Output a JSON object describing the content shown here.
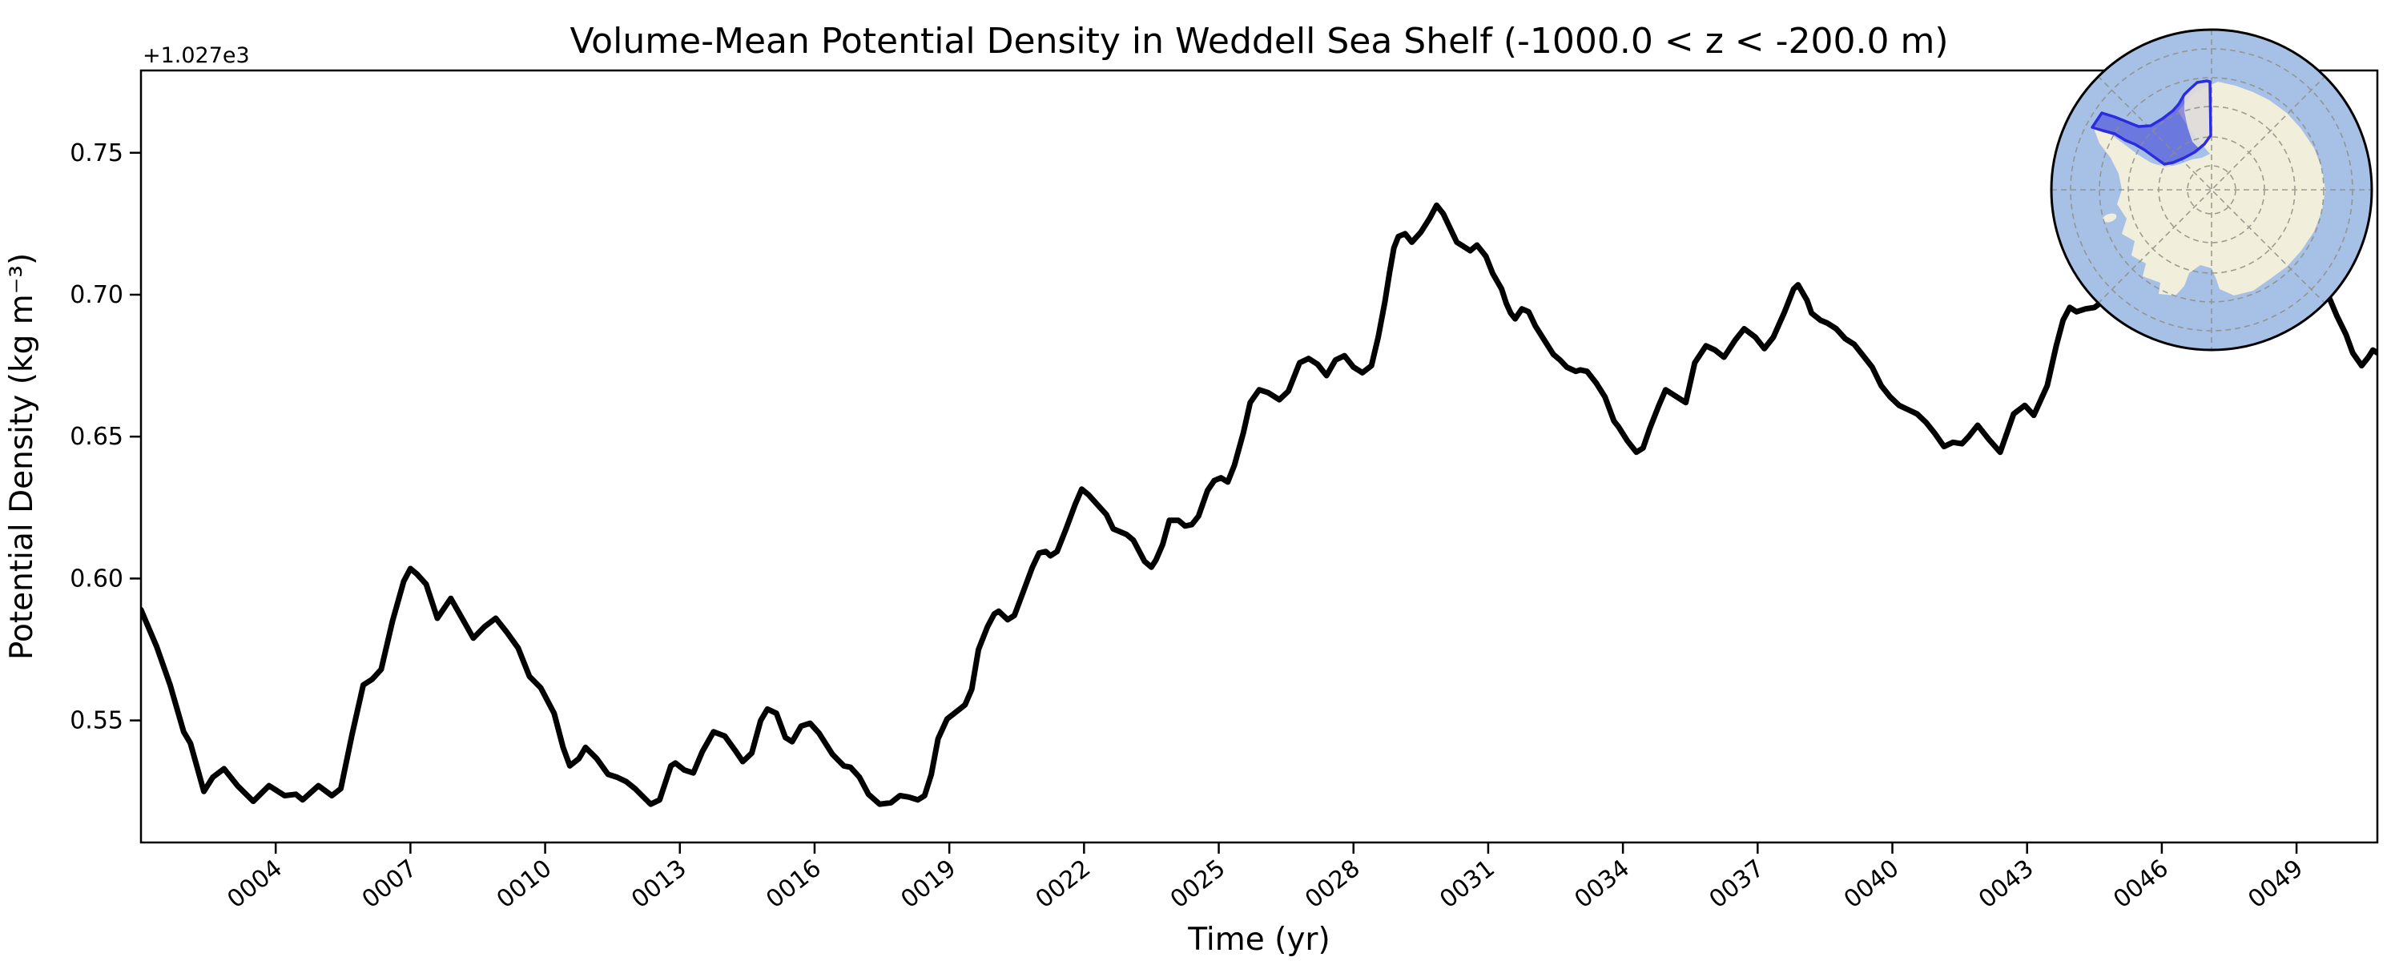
{
  "title": "Volume-Mean Potential Density in Weddell Sea Shelf (-1000.0 < z < -200.0 m)",
  "axes": {
    "xlabel": "Time (yr)",
    "ylabel": "Potential Density (kg m⁻³)",
    "offset_text": "+1.027e3"
  },
  "chart_data": {
    "type": "line",
    "title": "Volume-Mean Potential Density in Weddell Sea Shelf (-1000.0 < z < -200.0 m)",
    "xlabel": "Time (yr)",
    "ylabel": "Potential Density (kg m⁻³)",
    "y_offset": "+1.027e3",
    "xlim": [
      1.0,
      50.8
    ],
    "ylim": [
      0.507,
      0.779
    ],
    "grid": false,
    "legend": "none",
    "line_color": "#000000",
    "line_width": 7,
    "x_ticks": {
      "values": [
        4,
        7,
        10,
        13,
        16,
        19,
        22,
        25,
        28,
        31,
        34,
        37,
        40,
        43,
        46,
        49
      ],
      "labels": [
        "0004",
        "0007",
        "0010",
        "0013",
        "0016",
        "0019",
        "0022",
        "0025",
        "0028",
        "0031",
        "0034",
        "0037",
        "0040",
        "0043",
        "0046",
        "0049"
      ]
    },
    "y_ticks": {
      "values": [
        0.55,
        0.6,
        0.65,
        0.7,
        0.75
      ],
      "labels": [
        "0.55",
        "0.60",
        "0.65",
        "0.70",
        "0.75"
      ]
    },
    "x": [
      1.0,
      1.35,
      1.65,
      1.95,
      2.1,
      2.25,
      2.4,
      2.6,
      2.85,
      3.15,
      3.5,
      3.85,
      4.2,
      4.45,
      4.6,
      4.95,
      5.25,
      5.45,
      5.7,
      5.95,
      6.15,
      6.35,
      6.6,
      6.85,
      7.0,
      7.15,
      7.35,
      7.6,
      7.9,
      8.15,
      8.4,
      8.65,
      8.9,
      9.15,
      9.4,
      9.65,
      9.9,
      10.2,
      10.4,
      10.55,
      10.75,
      10.9,
      11.15,
      11.4,
      11.6,
      11.8,
      12.0,
      12.35,
      12.55,
      12.8,
      12.9,
      13.1,
      13.3,
      13.5,
      13.75,
      14.0,
      14.25,
      14.4,
      14.6,
      14.8,
      14.95,
      15.15,
      15.35,
      15.5,
      15.7,
      15.9,
      16.1,
      16.4,
      16.65,
      16.8,
      17.0,
      17.2,
      17.45,
      17.7,
      17.9,
      18.1,
      18.3,
      18.45,
      18.6,
      18.75,
      18.95,
      19.15,
      19.35,
      19.5,
      19.65,
      19.85,
      20.0,
      20.1,
      20.3,
      20.45,
      20.65,
      20.85,
      21.0,
      21.15,
      21.25,
      21.4,
      21.6,
      21.8,
      21.95,
      22.1,
      22.3,
      22.5,
      22.65,
      22.8,
      22.95,
      23.1,
      23.2,
      23.35,
      23.5,
      23.6,
      23.75,
      23.9,
      24.1,
      24.25,
      24.4,
      24.55,
      24.75,
      24.9,
      25.05,
      25.2,
      25.35,
      25.55,
      25.7,
      25.9,
      26.1,
      26.35,
      26.55,
      26.8,
      27.0,
      27.2,
      27.4,
      27.6,
      27.8,
      28.0,
      28.2,
      28.4,
      28.55,
      28.7,
      28.8,
      28.9,
      29.0,
      29.15,
      29.3,
      29.5,
      29.7,
      29.85,
      30.0,
      30.15,
      30.3,
      30.45,
      30.6,
      30.75,
      30.95,
      31.1,
      31.3,
      31.4,
      31.5,
      31.6,
      31.75,
      31.9,
      32.05,
      32.25,
      32.45,
      32.6,
      32.75,
      32.95,
      33.05,
      33.2,
      33.4,
      33.6,
      33.8,
      33.9,
      34.1,
      34.3,
      34.45,
      34.6,
      34.8,
      34.95,
      35.15,
      35.4,
      35.6,
      35.85,
      36.05,
      36.25,
      36.5,
      36.7,
      36.95,
      37.15,
      37.35,
      37.6,
      37.8,
      37.9,
      38.1,
      38.2,
      38.4,
      38.55,
      38.75,
      38.95,
      39.15,
      39.35,
      39.55,
      39.75,
      39.95,
      40.15,
      40.35,
      40.55,
      40.75,
      40.95,
      41.15,
      41.35,
      41.55,
      41.7,
      41.9,
      42.15,
      42.4,
      42.7,
      42.95,
      43.15,
      43.45,
      43.65,
      43.8,
      43.95,
      44.1,
      44.3,
      44.5,
      44.8,
      45.1,
      45.4,
      45.7,
      46.0,
      46.3,
      46.6,
      46.9,
      47.2,
      47.5,
      47.8,
      48.1,
      48.4,
      48.7,
      49.0,
      49.3,
      49.55,
      49.7,
      49.9,
      50.1,
      50.25,
      50.45,
      50.6,
      50.7,
      50.8
    ],
    "y": [
      0.589,
      0.576,
      0.5625,
      0.546,
      0.542,
      0.5335,
      0.525,
      0.53,
      0.533,
      0.527,
      0.5215,
      0.527,
      0.5235,
      0.524,
      0.522,
      0.527,
      0.5235,
      0.526,
      0.545,
      0.5625,
      0.5645,
      0.568,
      0.585,
      0.599,
      0.6035,
      0.6015,
      0.598,
      0.586,
      0.593,
      0.586,
      0.579,
      0.583,
      0.586,
      0.581,
      0.5755,
      0.5655,
      0.5615,
      0.5525,
      0.5405,
      0.534,
      0.5365,
      0.5405,
      0.5365,
      0.531,
      0.53,
      0.5285,
      0.526,
      0.5205,
      0.522,
      0.534,
      0.535,
      0.5325,
      0.5315,
      0.539,
      0.546,
      0.5445,
      0.539,
      0.5355,
      0.5385,
      0.55,
      0.554,
      0.5525,
      0.544,
      0.5425,
      0.548,
      0.549,
      0.5455,
      0.538,
      0.534,
      0.5335,
      0.53,
      0.524,
      0.5205,
      0.521,
      0.5235,
      0.523,
      0.522,
      0.5235,
      0.531,
      0.5435,
      0.5505,
      0.553,
      0.5555,
      0.561,
      0.575,
      0.583,
      0.5875,
      0.5885,
      0.5855,
      0.587,
      0.5955,
      0.604,
      0.609,
      0.6095,
      0.608,
      0.6095,
      0.6175,
      0.626,
      0.6315,
      0.6295,
      0.626,
      0.6225,
      0.6175,
      0.6165,
      0.6155,
      0.6135,
      0.6105,
      0.606,
      0.604,
      0.6065,
      0.612,
      0.6205,
      0.6205,
      0.6185,
      0.619,
      0.622,
      0.631,
      0.6345,
      0.6355,
      0.634,
      0.64,
      0.6515,
      0.662,
      0.6665,
      0.6655,
      0.663,
      0.666,
      0.676,
      0.6775,
      0.6755,
      0.6715,
      0.677,
      0.6785,
      0.6745,
      0.6725,
      0.675,
      0.685,
      0.6975,
      0.7075,
      0.7165,
      0.7205,
      0.7215,
      0.7185,
      0.722,
      0.727,
      0.7315,
      0.7285,
      0.7235,
      0.7185,
      0.717,
      0.7155,
      0.7175,
      0.7135,
      0.7075,
      0.702,
      0.697,
      0.6935,
      0.6915,
      0.695,
      0.694,
      0.689,
      0.684,
      0.679,
      0.677,
      0.6745,
      0.673,
      0.6735,
      0.673,
      0.669,
      0.664,
      0.6555,
      0.6535,
      0.6485,
      0.6445,
      0.646,
      0.653,
      0.661,
      0.6665,
      0.6645,
      0.662,
      0.676,
      0.682,
      0.6805,
      0.678,
      0.684,
      0.688,
      0.685,
      0.681,
      0.685,
      0.694,
      0.702,
      0.7035,
      0.698,
      0.6935,
      0.691,
      0.69,
      0.688,
      0.6845,
      0.6825,
      0.6785,
      0.6745,
      0.668,
      0.664,
      0.661,
      0.6595,
      0.658,
      0.655,
      0.651,
      0.6465,
      0.648,
      0.6475,
      0.65,
      0.654,
      0.649,
      0.6445,
      0.658,
      0.661,
      0.6575,
      0.668,
      0.682,
      0.691,
      0.6955,
      0.694,
      0.695,
      0.6955,
      0.699,
      0.7025,
      0.7045,
      0.701,
      0.697,
      0.694,
      0.6965,
      0.7,
      0.7035,
      0.7045,
      0.702,
      0.699,
      0.7,
      0.7025,
      0.7035,
      0.7025,
      0.701,
      0.7,
      0.6925,
      0.686,
      0.6795,
      0.675,
      0.678,
      0.6805,
      0.6795
    ]
  },
  "inset_map": {
    "description": "south-polar-stereographic-inset",
    "ocean_color": "#a7c1e6",
    "land_color": "#f1eedb",
    "graticule_color": "#8e8e85",
    "region_fill": "rgba(47,47,214,0.5)",
    "region_border": "#2b2be0",
    "land_under_region_color": "rgba(241,238,219,0.82)",
    "shelf_patch_color": "rgba(241,238,219,0.55)",
    "outline_color": "#000000"
  }
}
